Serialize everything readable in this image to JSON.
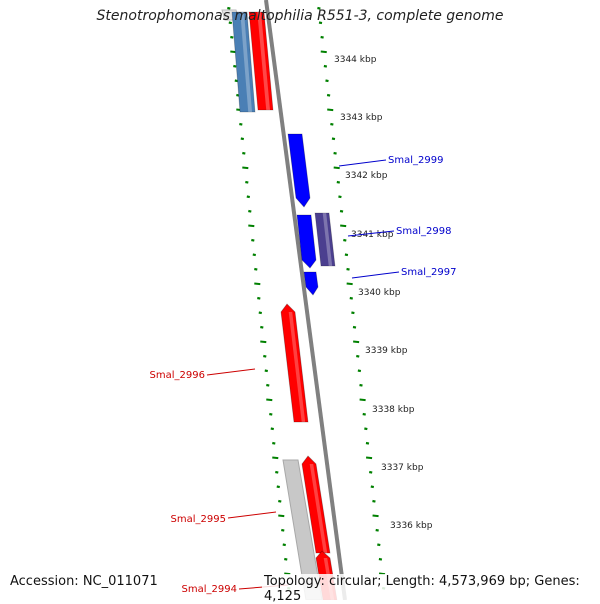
{
  "title": "Stenotrophomonas maltophilia R551-3, complete genome",
  "accession": "Accession: NC_011071",
  "summary": "Topology: circular; Length: 4,573,969 bp; Genes: 4,125",
  "colors": {
    "forward": "#ff0000",
    "reverse": "#0000ff",
    "blue_steel": "#4a7fb5",
    "purple": "#4b3f8f",
    "grey": "#c8c8c8",
    "ticks": "#008000",
    "backbone": "#808080"
  },
  "scale_labels": [
    "3344 kbp",
    "3343 kbp",
    "3342 kbp",
    "3341 kbp",
    "3340 kbp",
    "3339 kbp",
    "3338 kbp",
    "3337 kbp",
    "3336 kbp"
  ],
  "gene_labels": [
    {
      "name": "Smal_2999",
      "color": "#0000cc"
    },
    {
      "name": "Smal_2998",
      "color": "#0000cc"
    },
    {
      "name": "Smal_2997",
      "color": "#0000cc"
    },
    {
      "name": "Smal_2996",
      "color": "#cc0000"
    },
    {
      "name": "Smal_2995",
      "color": "#cc0000"
    },
    {
      "name": "Smal_2994",
      "color": "#cc0000"
    }
  ]
}
